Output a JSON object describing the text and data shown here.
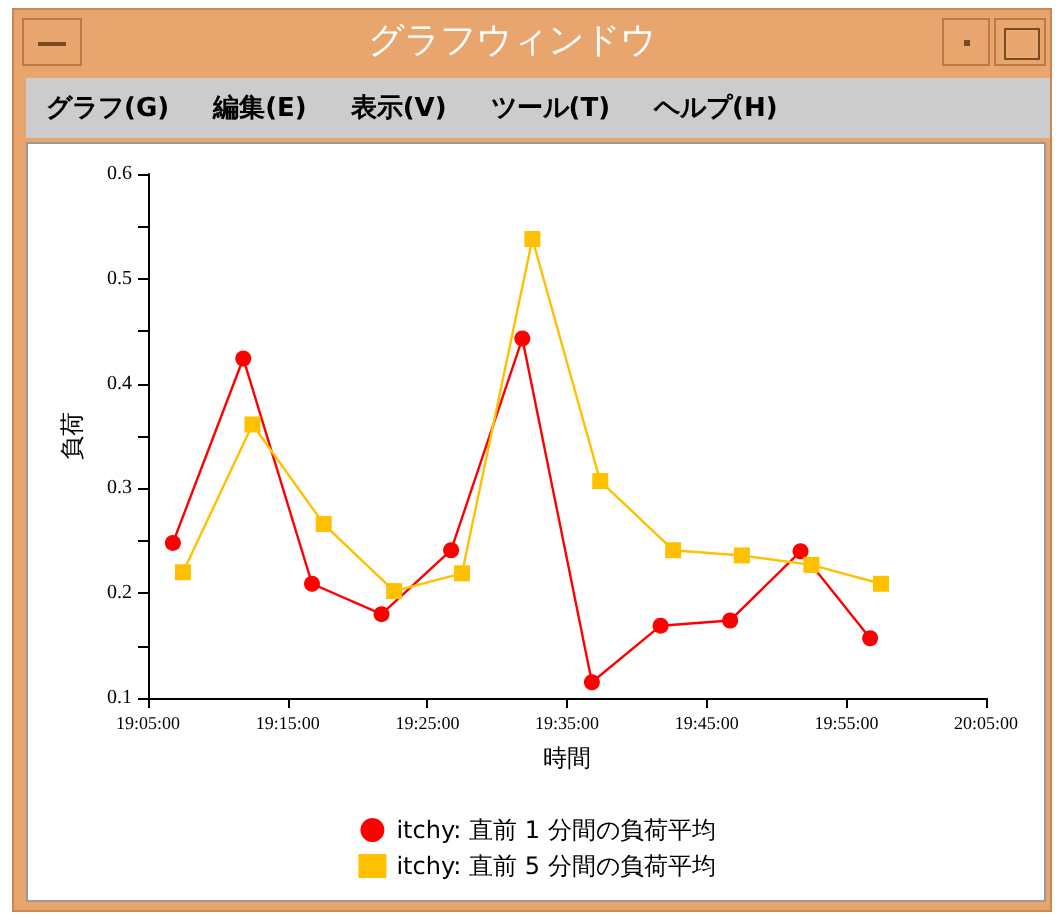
{
  "chart_data": {
    "type": "line",
    "title": "グラフウィンドウ",
    "annotations": [
      "グラフ(G)",
      "編集(E)",
      "表示(V)",
      "ツール(T)",
      "ヘルプ(H)"
    ],
    "xlabel": "時間",
    "ylabel": "負荷",
    "xlim": [
      19.0833,
      20.0833
    ],
    "xticks": [
      {
        "value": 19.0833,
        "label": "19:05:00"
      },
      {
        "value": 19.25,
        "label": "19:15:00"
      },
      {
        "value": 19.4167,
        "label": "19:25:00"
      },
      {
        "value": 19.5833,
        "label": "19:35:00"
      },
      {
        "value": 19.75,
        "label": "19:45:00"
      },
      {
        "value": 19.9167,
        "label": "19:55:00"
      },
      {
        "value": 20.0833,
        "label": "20:05:00"
      }
    ],
    "ylim": [
      0.1,
      0.6
    ],
    "yticks": [
      0.1,
      {
        "value": 0.15,
        "label": null
      },
      0.2,
      {
        "value": 0.25,
        "label": null
      },
      0.3,
      {
        "value": 0.35,
        "label": null
      },
      0.4,
      {
        "value": 0.45,
        "label": null
      },
      0.5,
      {
        "value": 0.55,
        "label": null
      },
      0.6
    ],
    "grid": false,
    "legend": "bottom",
    "line_style": "solid",
    "series": [
      {
        "name": "itchy: 直前 1 分間の負荷平均",
        "color": "#ff0000",
        "marker": "circle",
        "x": [
          19.113,
          19.197,
          19.279,
          19.362,
          19.445,
          19.53,
          19.613,
          19.695,
          19.778,
          19.862,
          19.945
        ],
        "values": [
          0.248,
          0.424,
          0.209,
          0.18,
          0.241,
          0.443,
          0.115,
          0.169,
          0.174,
          0.24,
          0.157
        ]
      },
      {
        "name": "itchy: 直前 5 分間の負荷平均",
        "color": "#ffc000",
        "marker": "square",
        "x": [
          19.125,
          19.208,
          19.293,
          19.377,
          19.458,
          19.542,
          19.623,
          19.71,
          19.792,
          19.875,
          19.958
        ],
        "values": [
          0.22,
          0.361,
          0.266,
          0.202,
          0.219,
          0.538,
          0.307,
          0.241,
          0.236,
          0.227,
          0.209
        ]
      }
    ]
  }
}
